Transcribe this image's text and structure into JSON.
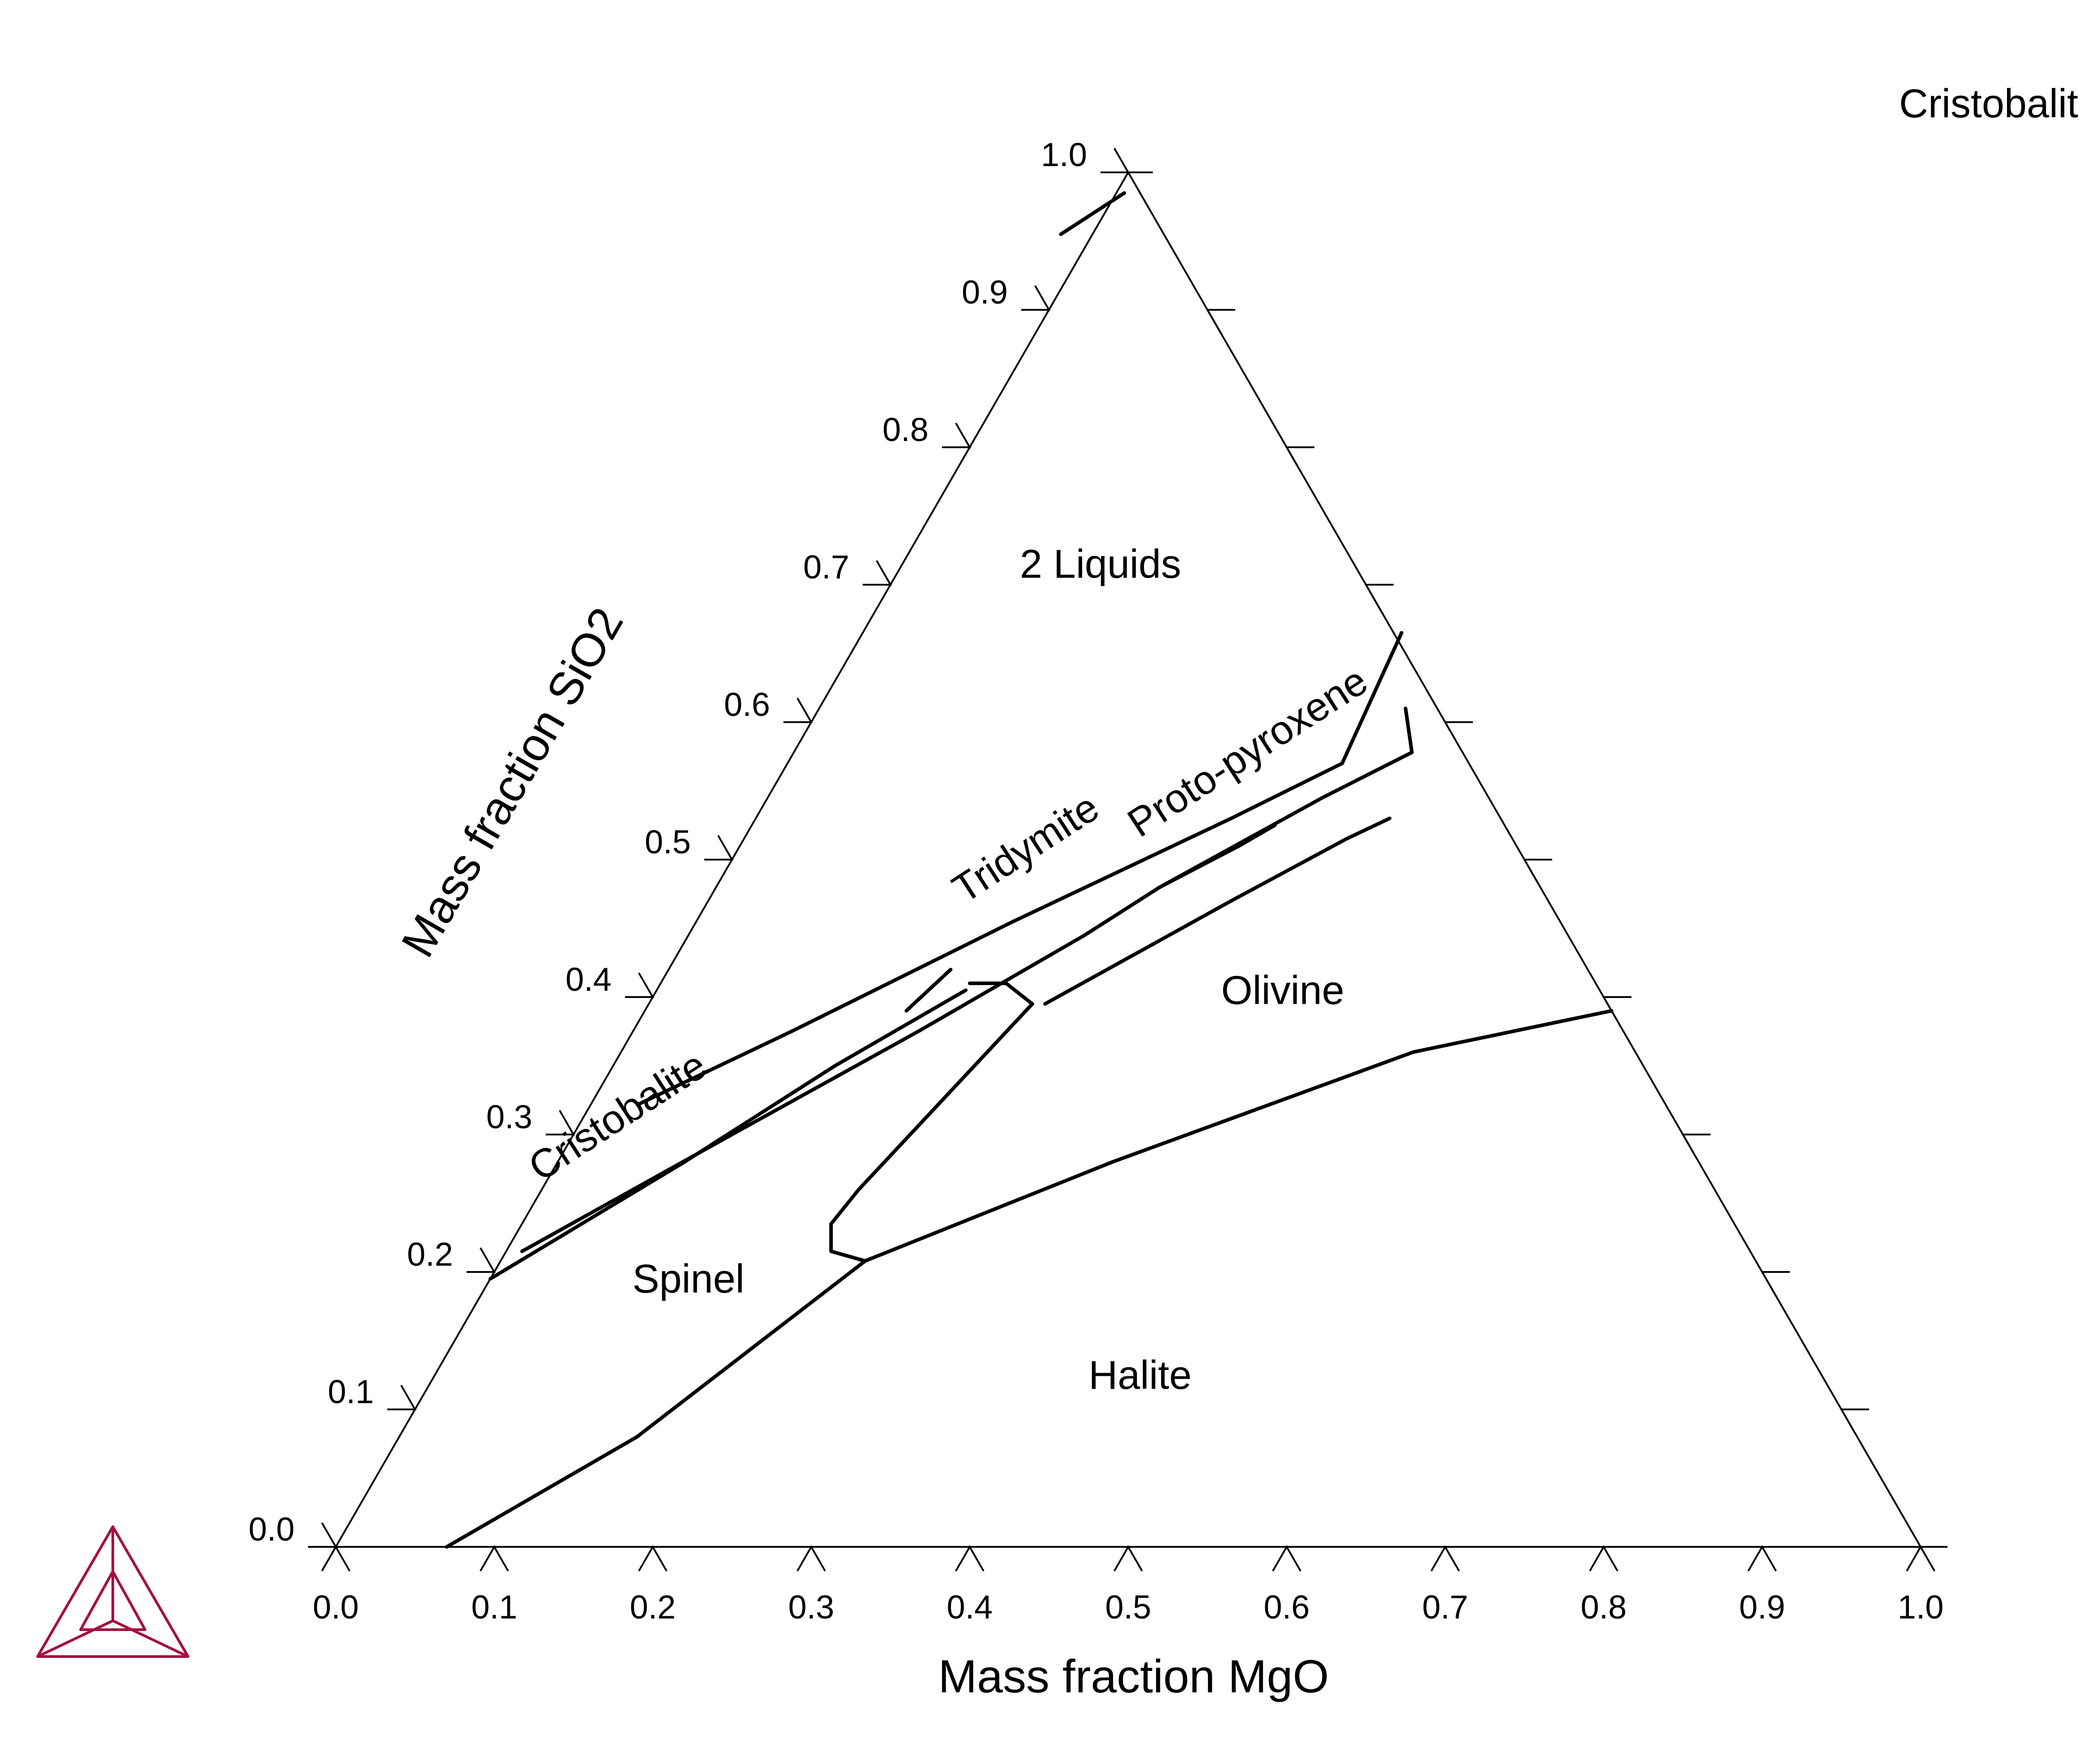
{
  "chart_data": {
    "type": "ternary",
    "xlabel": "Mass fraction MgO",
    "ylabel": "Mass fraction SiO2",
    "xlim": [
      0,
      1
    ],
    "ylim": [
      0,
      1
    ],
    "x_ticks": [
      "0.0",
      "0.1",
      "0.2",
      "0.3",
      "0.4",
      "0.5",
      "0.6",
      "0.7",
      "0.8",
      "0.9",
      "1.0"
    ],
    "y_ticks": [
      "0.0",
      "0.1",
      "0.2",
      "0.3",
      "0.4",
      "0.5",
      "0.6",
      "0.7",
      "0.8",
      "0.9",
      "1.0"
    ],
    "region_labels": [
      {
        "text": "Cristobalite",
        "x": 0.53,
        "y": 1.04,
        "rotate": 0
      },
      {
        "text": "2 Liquids",
        "x": 0.13,
        "y": 0.705,
        "rotate": 0
      },
      {
        "text": "Tridymite",
        "x": 0.19,
        "y": 0.5,
        "rotate": -33
      },
      {
        "text": "Proto-pyroxene",
        "x": 0.295,
        "y": 0.57,
        "rotate": -33
      },
      {
        "text": "Cristobalite",
        "x": 0.03,
        "y": 0.305,
        "rotate": -33
      },
      {
        "text": "Olivine",
        "x": 0.4,
        "y": 0.395,
        "rotate": 0
      },
      {
        "text": "Spinel",
        "x": 0.13,
        "y": 0.185,
        "rotate": 0
      },
      {
        "text": "Halite",
        "x": 0.45,
        "y": 0.115,
        "rotate": 0
      }
    ],
    "boundaries": [
      {
        "name": "liquid-miscibility-gap",
        "points": [
          [
            0.03,
            0.322
          ],
          [
            0.1,
            0.375
          ],
          [
            0.2,
            0.455
          ],
          [
            0.3,
            0.53
          ],
          [
            0.35,
            0.57
          ],
          [
            0.34,
            0.665
          ]
        ]
      },
      {
        "name": "tridymite-protopyroxene",
        "points": [
          [
            0.01,
            0.215
          ],
          [
            0.1,
            0.3
          ],
          [
            0.18,
            0.375
          ],
          [
            0.25,
            0.445
          ],
          [
            0.28,
            0.48
          ],
          [
            0.315,
            0.51
          ],
          [
            0.33,
            0.525
          ]
        ]
      },
      {
        "name": "cristobalite-spinel",
        "points": [
          [
            0.0,
            0.195
          ],
          [
            0.08,
            0.28
          ],
          [
            0.14,
            0.35
          ],
          [
            0.18,
            0.39
          ],
          [
            0.195,
            0.405
          ]
        ]
      },
      {
        "name": "protopyroxene-olivine-upper",
        "points": [
          [
            0.28,
            0.48
          ],
          [
            0.35,
            0.545
          ],
          [
            0.39,
            0.578
          ],
          [
            0.37,
            0.61
          ]
        ]
      },
      {
        "name": "protopyroxene-olivine-lower",
        "points": [
          [
            0.25,
            0.395
          ],
          [
            0.33,
            0.47
          ],
          [
            0.38,
            0.515
          ],
          [
            0.4,
            0.53
          ]
        ]
      },
      {
        "name": "protopyroxene-tip",
        "points": [
          [
            0.195,
            0.41
          ],
          [
            0.218,
            0.41
          ],
          [
            0.242,
            0.395
          ]
        ]
      },
      {
        "name": "olivine-spinel",
        "points": [
          [
            0.242,
            0.395
          ],
          [
            0.2,
            0.26
          ],
          [
            0.195,
            0.235
          ],
          [
            0.205,
            0.215
          ],
          [
            0.23,
            0.208
          ]
        ]
      },
      {
        "name": "halite-boundary",
        "points": [
          [
            0.07,
            0.0
          ],
          [
            0.15,
            0.08
          ],
          [
            0.23,
            0.208
          ],
          [
            0.35,
            0.28
          ],
          [
            0.5,
            0.36
          ],
          [
            0.61,
            0.39
          ]
        ]
      },
      {
        "name": "cristobalite-apex",
        "points": [
          [
            -0.02,
            0.955
          ],
          [
            0.005,
            0.985
          ]
        ]
      },
      {
        "name": "tridymite-arrow",
        "points": [
          [
            0.165,
            0.39
          ],
          [
            0.178,
            0.42
          ]
        ]
      }
    ]
  }
}
